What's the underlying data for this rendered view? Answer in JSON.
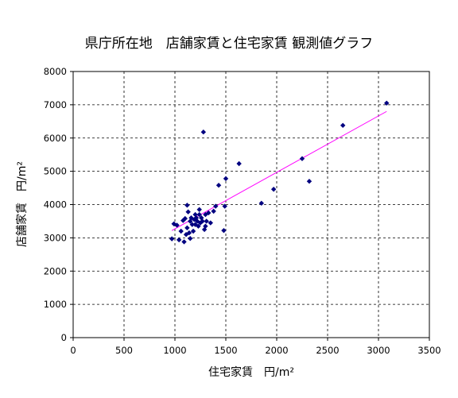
{
  "chart_data": {
    "type": "scatter",
    "title": "県庁所在地　店舗家賃と住宅家賃 観測値グラフ",
    "xlabel": "住宅家賃　円/m²",
    "ylabel": "店舗家賃　円/m²",
    "xlim": [
      0,
      3500
    ],
    "ylim": [
      0,
      8000
    ],
    "xticks": [
      "0",
      "500",
      "1000",
      "1500",
      "2000",
      "2500",
      "3000",
      "3500"
    ],
    "yticks": [
      "0",
      "1000",
      "2000",
      "3000",
      "4000",
      "5000",
      "6000",
      "7000",
      "8000"
    ],
    "grid": true,
    "legend": "none",
    "colors": {
      "points": "#000080",
      "trendline": "#ff00ff",
      "grid": "#000000"
    },
    "series": [
      {
        "type": "scatter",
        "points": [
          [
            970,
            2970
          ],
          [
            990,
            3420
          ],
          [
            1020,
            3380
          ],
          [
            1040,
            2940
          ],
          [
            1060,
            3200
          ],
          [
            1080,
            3520
          ],
          [
            1090,
            2880
          ],
          [
            1100,
            3580
          ],
          [
            1110,
            3100
          ],
          [
            1120,
            3300
          ],
          [
            1120,
            3980
          ],
          [
            1130,
            3780
          ],
          [
            1140,
            3150
          ],
          [
            1150,
            2980
          ],
          [
            1150,
            3500
          ],
          [
            1160,
            3600
          ],
          [
            1170,
            3400
          ],
          [
            1180,
            3200
          ],
          [
            1190,
            3550
          ],
          [
            1200,
            3400
          ],
          [
            1200,
            3700
          ],
          [
            1210,
            3600
          ],
          [
            1220,
            3500
          ],
          [
            1230,
            3350
          ],
          [
            1240,
            3700
          ],
          [
            1240,
            3850
          ],
          [
            1250,
            3450
          ],
          [
            1260,
            3600
          ],
          [
            1270,
            3500
          ],
          [
            1280,
            6180
          ],
          [
            1290,
            3250
          ],
          [
            1300,
            3700
          ],
          [
            1300,
            3350
          ],
          [
            1310,
            3500
          ],
          [
            1330,
            3750
          ],
          [
            1350,
            3450
          ],
          [
            1380,
            3800
          ],
          [
            1400,
            3950
          ],
          [
            1430,
            4580
          ],
          [
            1480,
            3220
          ],
          [
            1490,
            3950
          ],
          [
            1500,
            4780
          ],
          [
            1630,
            5230
          ],
          [
            1850,
            4040
          ],
          [
            1970,
            4460
          ],
          [
            2250,
            5380
          ],
          [
            2320,
            4700
          ],
          [
            2650,
            6380
          ],
          [
            3080,
            7050
          ]
        ]
      }
    ],
    "trendline": {
      "x": [
        970,
        3080
      ],
      "y": [
        3220,
        6800
      ]
    }
  }
}
